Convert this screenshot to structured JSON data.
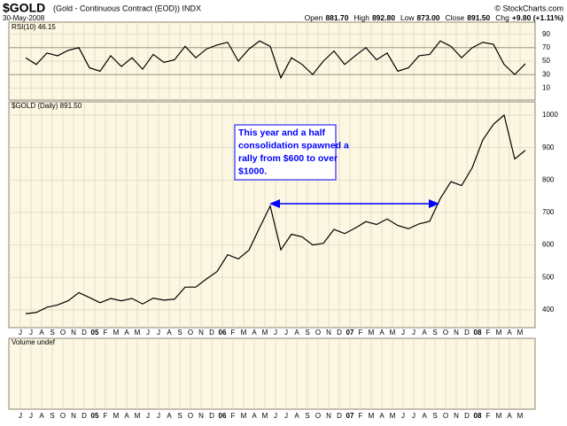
{
  "chart_data": {
    "type": "line",
    "symbol": "$GOLD",
    "description": "(Gold - Continuous Contract (EOD)) INDX",
    "date": "30-May-2008",
    "source": "© StockCharts.com",
    "quote": [
      {
        "label": "Open",
        "value": "881.70"
      },
      {
        "label": "High",
        "value": "892.80"
      },
      {
        "label": "Low",
        "value": "873.00"
      },
      {
        "label": "Close",
        "value": "891.50"
      },
      {
        "label": "Chg",
        "value": "+9.80 (+1.11%)"
      }
    ],
    "price_legend": "$GOLD (Daily) 891.50",
    "rsi_legend": "RSI(10) 46.15",
    "volume_legend": "Volume undef",
    "annotation": [
      "This year and a half",
      "consolidation spawned a",
      "rally from $600 to over",
      "$1000."
    ],
    "categories": [
      "J",
      "J",
      "A",
      "S",
      "O",
      "N",
      "D",
      "05",
      "F",
      "M",
      "A",
      "M",
      "J",
      "J",
      "A",
      "S",
      "O",
      "N",
      "D",
      "06",
      "F",
      "M",
      "A",
      "M",
      "J",
      "J",
      "A",
      "S",
      "O",
      "N",
      "D",
      "07",
      "F",
      "M",
      "A",
      "M",
      "J",
      "J",
      "A",
      "S",
      "O",
      "N",
      "D",
      "08",
      "F",
      "M",
      "A",
      "M"
    ],
    "series": [
      {
        "name": "$GOLD",
        "color": "#000000",
        "values": [
          388,
          392,
          408,
          415,
          428,
          453,
          438,
          422,
          435,
          428,
          435,
          418,
          436,
          430,
          433,
          470,
          470,
          495,
          518,
          570,
          557,
          584,
          653,
          720,
          585,
          633,
          625,
          600,
          605,
          648,
          635,
          652,
          672,
          663,
          680,
          660,
          650,
          665,
          673,
          743,
          795,
          783,
          838,
          924,
          972,
          1000,
          865,
          891.5
        ]
      },
      {
        "name": "RSI(10)",
        "color": "#000000",
        "axis": "y2",
        "values": [
          55,
          45,
          62,
          58,
          66,
          70,
          40,
          35,
          58,
          42,
          55,
          38,
          60,
          48,
          52,
          72,
          55,
          68,
          74,
          78,
          50,
          68,
          80,
          72,
          25,
          55,
          45,
          30,
          50,
          65,
          45,
          58,
          70,
          52,
          62,
          35,
          40,
          58,
          60,
          80,
          72,
          55,
          70,
          78,
          75,
          45,
          30,
          46.15
        ]
      }
    ],
    "ylim": [
      345,
      1041
    ],
    "yticks": [
      400,
      500,
      600,
      700,
      800,
      900,
      1000
    ],
    "y2lim": [
      -8,
      108
    ],
    "y2ticks": [
      10,
      30,
      50,
      70,
      90
    ],
    "grid": true
  }
}
